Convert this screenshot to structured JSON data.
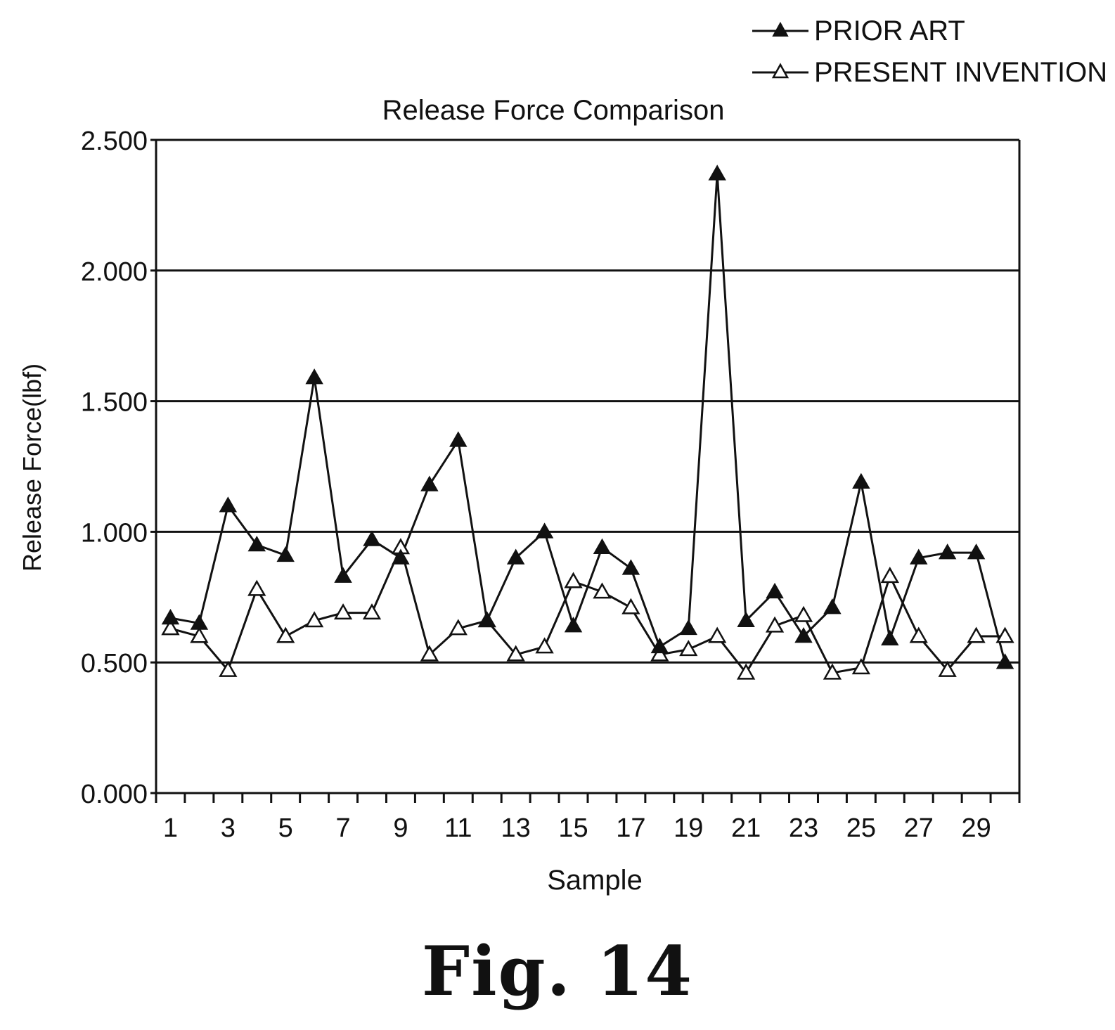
{
  "chart_data": {
    "type": "line",
    "title": "Release Force Comparison",
    "xlabel": "Sample",
    "ylabel": "Release Force(lbf)",
    "x": [
      1,
      2,
      3,
      4,
      5,
      6,
      7,
      8,
      9,
      10,
      11,
      12,
      13,
      14,
      15,
      16,
      17,
      18,
      19,
      20,
      21,
      22,
      23,
      24,
      25,
      26,
      27,
      28,
      29,
      30
    ],
    "x_tick_labels": [
      "1",
      "3",
      "5",
      "7",
      "9",
      "11",
      "13",
      "15",
      "17",
      "19",
      "21",
      "23",
      "25",
      "27",
      "29"
    ],
    "x_tick_label_values": [
      1,
      3,
      5,
      7,
      9,
      11,
      13,
      15,
      17,
      19,
      21,
      23,
      25,
      27,
      29
    ],
    "y_tick_labels": [
      "0.000",
      "0.500",
      "1.000",
      "1.500",
      "2.000",
      "2.500"
    ],
    "y_tick_values": [
      0,
      0.5,
      1.0,
      1.5,
      2.0,
      2.5
    ],
    "xlim": [
      0.5,
      30.5
    ],
    "ylim": [
      0,
      2.5
    ],
    "grid": "horizontal",
    "legend_position": "top-right",
    "series": [
      {
        "name": "PRIOR ART",
        "marker": "filled-triangle",
        "values": [
          0.67,
          0.65,
          1.1,
          0.95,
          0.91,
          1.59,
          0.83,
          0.97,
          0.9,
          1.18,
          1.35,
          0.66,
          0.9,
          1.0,
          0.64,
          0.94,
          0.86,
          0.56,
          0.63,
          2.37,
          0.66,
          0.77,
          0.6,
          0.71,
          1.19,
          0.59,
          0.9,
          0.92,
          0.92,
          0.5
        ]
      },
      {
        "name": "PRESENT INVENTION",
        "marker": "open-triangle",
        "values": [
          0.63,
          0.6,
          0.47,
          0.78,
          0.6,
          0.66,
          0.69,
          0.69,
          0.94,
          0.53,
          0.63,
          0.66,
          0.53,
          0.56,
          0.81,
          0.77,
          0.71,
          0.53,
          0.55,
          0.6,
          0.46,
          0.64,
          0.68,
          0.46,
          0.48,
          0.83,
          0.6,
          0.47,
          0.6,
          0.6
        ]
      }
    ]
  },
  "figure": {
    "caption": "Fig. 14"
  },
  "colors": {
    "line": "#111111",
    "grid": "#111111",
    "background": "#ffffff"
  }
}
